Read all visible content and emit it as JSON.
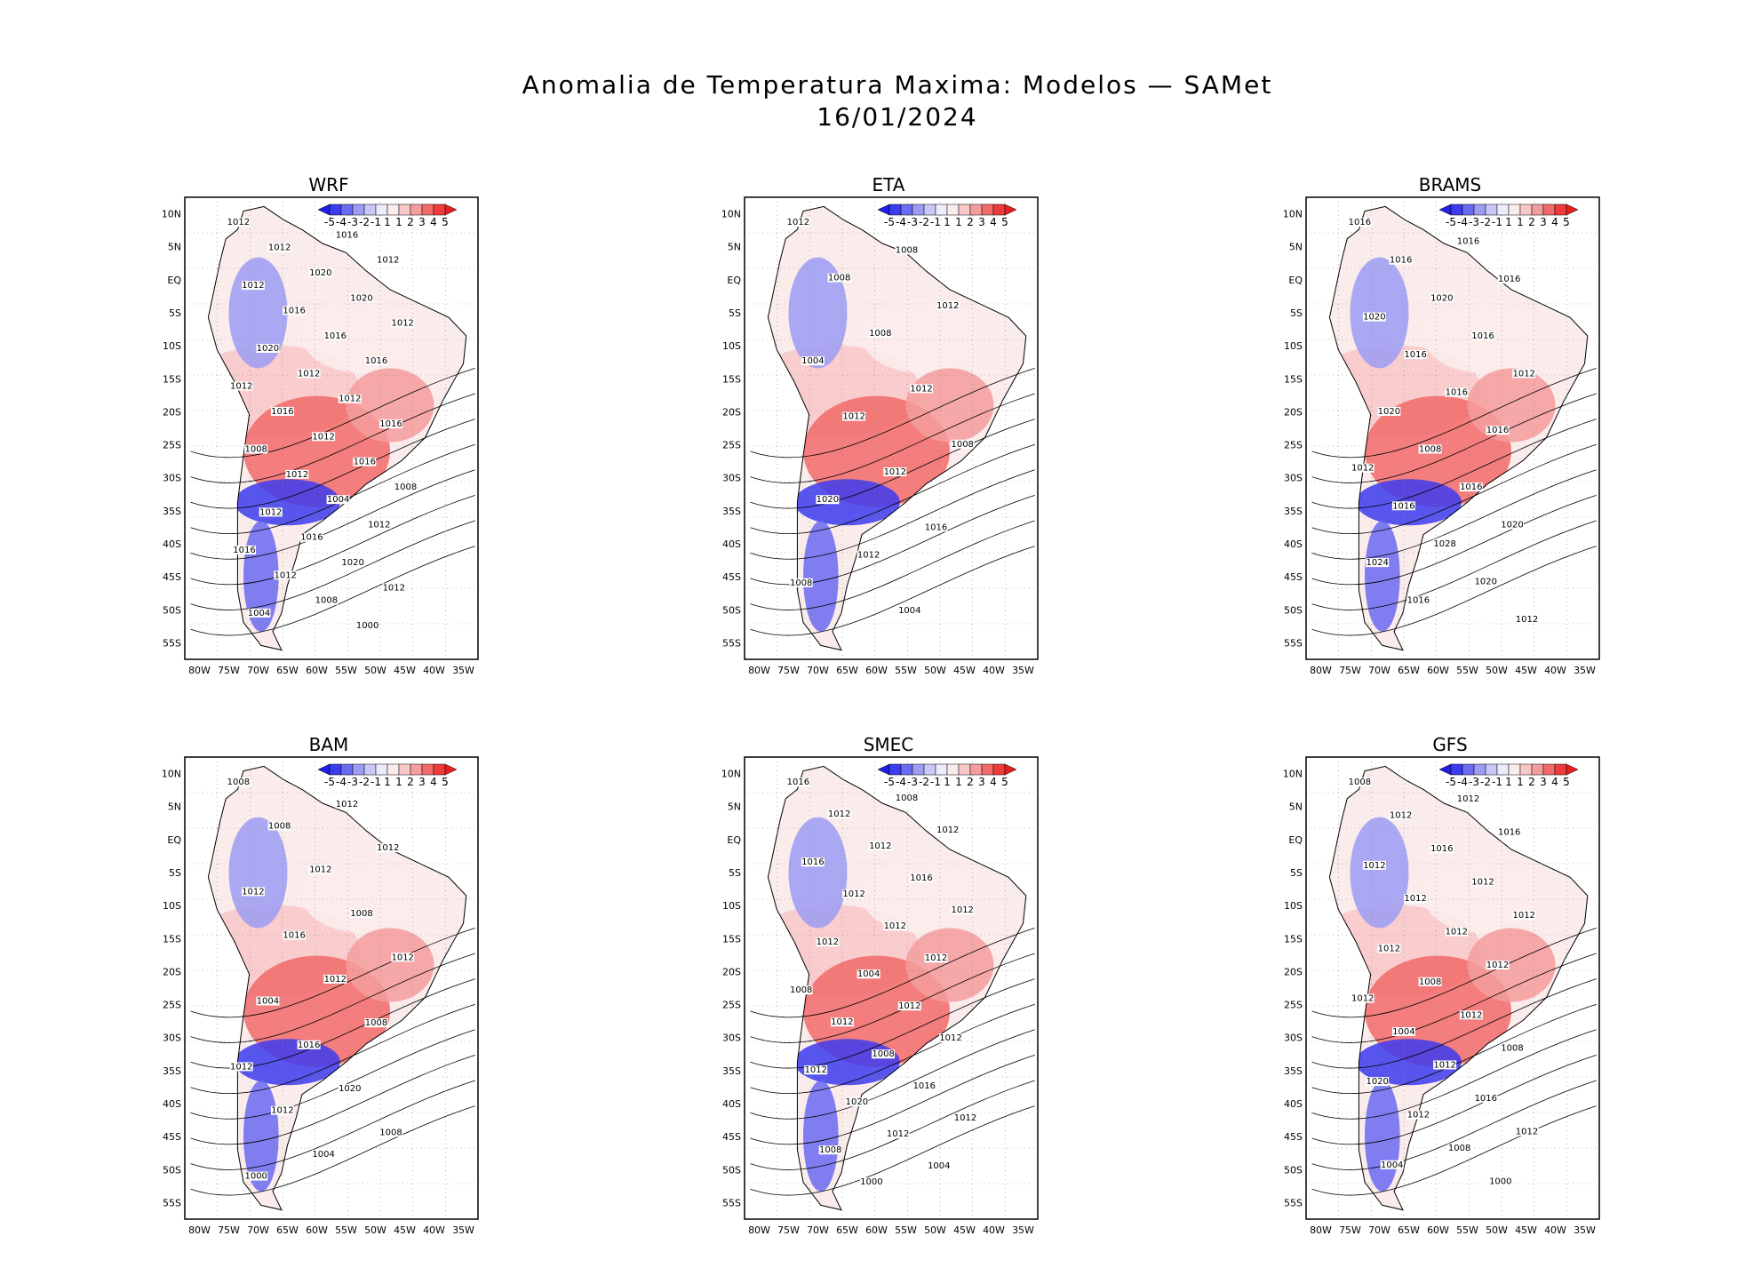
{
  "title": {
    "line1": "Anomalia de Temperatura Maxima: Modelos — SAMet",
    "line2": "16/01/2024"
  },
  "axes": {
    "lat_labels": [
      "10N",
      "5N",
      "EQ",
      "5S",
      "10S",
      "15S",
      "20S",
      "25S",
      "30S",
      "35S",
      "40S",
      "45S",
      "50S",
      "55S"
    ],
    "lon_labels": [
      "80W",
      "75W",
      "70W",
      "65W",
      "60W",
      "55W",
      "50W",
      "45W",
      "40W",
      "35W"
    ]
  },
  "colorbar": {
    "labels": [
      "-5",
      "-4",
      "-3",
      "-2",
      "-1",
      "1",
      "1",
      "2",
      "3",
      "4",
      "5"
    ],
    "colors": [
      "#1f1fe6",
      "#3b3bef",
      "#6a6af2",
      "#9c9cf5",
      "#c8c8f8",
      "#ececfb",
      "#fbecec",
      "#f8c8c8",
      "#f59c9c",
      "#f26a6a",
      "#ef3b3b",
      "#e61f1f"
    ]
  },
  "panels": [
    {
      "name": "WRF",
      "isobars": [
        "1012",
        "1016",
        "1012",
        "1012",
        "1020",
        "1012",
        "1020",
        "1016",
        "1012",
        "1016",
        "1020",
        "1016",
        "1012",
        "1012",
        "1012",
        "1016",
        "1016",
        "1012",
        "1008",
        "1016",
        "1012",
        "1008",
        "1004",
        "1012",
        "1012",
        "1016",
        "1016",
        "1020",
        "1012",
        "1012",
        "1008",
        "1004",
        "1000"
      ]
    },
    {
      "name": "ETA",
      "isobars": [
        "1012",
        "1008",
        "1008",
        "1012",
        "1008",
        "1004",
        "1012",
        "1012",
        "1008",
        "1012",
        "1020",
        "1016",
        "1012",
        "1008",
        "1004"
      ]
    },
    {
      "name": "BRAMS",
      "isobars": [
        "1016",
        "1016",
        "1016",
        "1016",
        "1020",
        "1020",
        "1016",
        "1016",
        "1012",
        "1016",
        "1020",
        "1016",
        "1008",
        "1012",
        "1016",
        "1016",
        "1020",
        "1028",
        "1024",
        "1020",
        "1016",
        "1012"
      ]
    },
    {
      "name": "BAM",
      "isobars": [
        "1008",
        "1012",
        "1008",
        "1012",
        "1012",
        "1012",
        "1008",
        "1016",
        "1012",
        "1012",
        "1004",
        "1008",
        "1016",
        "1012",
        "1020",
        "1012",
        "1008",
        "1004",
        "1000"
      ]
    },
    {
      "name": "SMEC",
      "isobars": [
        "1016",
        "1008",
        "1012",
        "1012",
        "1012",
        "1016",
        "1016",
        "1012",
        "1012",
        "1012",
        "1012",
        "1012",
        "1004",
        "1008",
        "1012",
        "1012",
        "1012",
        "1008",
        "1012",
        "1016",
        "1020",
        "1012",
        "1012",
        "1008",
        "1004",
        "1000"
      ]
    },
    {
      "name": "GFS",
      "isobars": [
        "1008",
        "1012",
        "1012",
        "1016",
        "1016",
        "1012",
        "1012",
        "1012",
        "1012",
        "1012",
        "1012",
        "1012",
        "1008",
        "1012",
        "1012",
        "1004",
        "1008",
        "1012",
        "1020",
        "1016",
        "1012",
        "1012",
        "1008",
        "1004",
        "1000"
      ]
    }
  ]
}
